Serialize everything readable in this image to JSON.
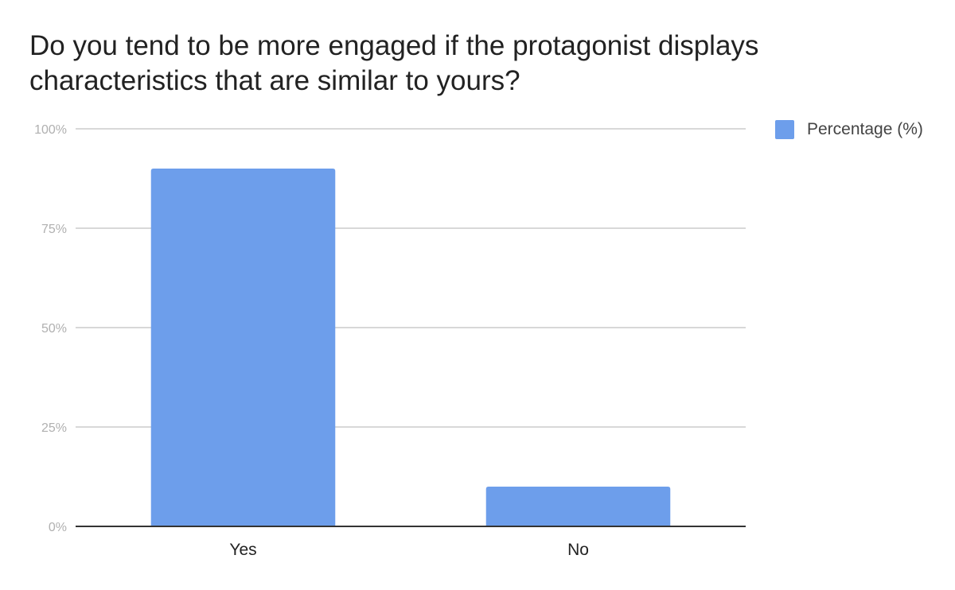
{
  "chart_data": {
    "type": "bar",
    "title": "Do you tend to be more engaged if the protagonist displays characteristics that are similar to yours?",
    "categories": [
      "Yes",
      "No"
    ],
    "series": [
      {
        "name": "Percentage (%)",
        "values": [
          90,
          10
        ],
        "color": "#6d9eeb"
      }
    ],
    "ylim": [
      0,
      100
    ],
    "yticks": [
      "0%",
      "25%",
      "50%",
      "75%",
      "100%"
    ],
    "ytick_values": [
      0,
      25,
      50,
      75,
      100
    ],
    "grid": true,
    "legend_position": "top-right"
  }
}
